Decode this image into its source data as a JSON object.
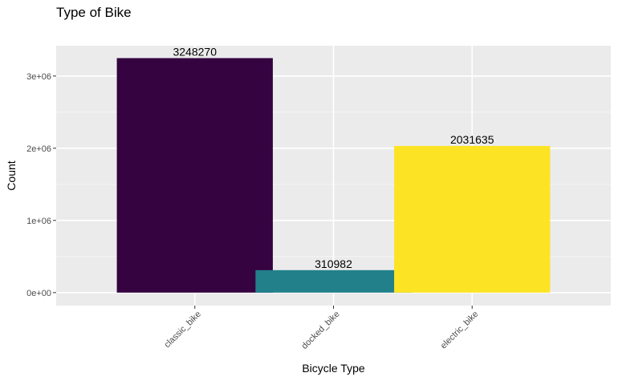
{
  "chart_data": {
    "type": "bar",
    "title": "Type of Bike",
    "xlabel": "Bicycle Type",
    "ylabel": "Count",
    "categories": [
      "classic_bike",
      "docked_bike",
      "electric_bike"
    ],
    "values": [
      3248270,
      310982,
      2031635
    ],
    "data_labels": [
      "3248270",
      "310982",
      "2031635"
    ],
    "colors": [
      "#350340",
      "#21808A",
      "#FCE424"
    ],
    "ylim": [
      -180000,
      3420000
    ],
    "y_ticks": [
      0,
      1000000,
      2000000,
      3000000
    ],
    "y_tick_labels": [
      "0e+00",
      "1e+06",
      "2e+06",
      "3e+06"
    ],
    "x_tick_rotation": "45deg",
    "grid": true,
    "legend": "none"
  }
}
